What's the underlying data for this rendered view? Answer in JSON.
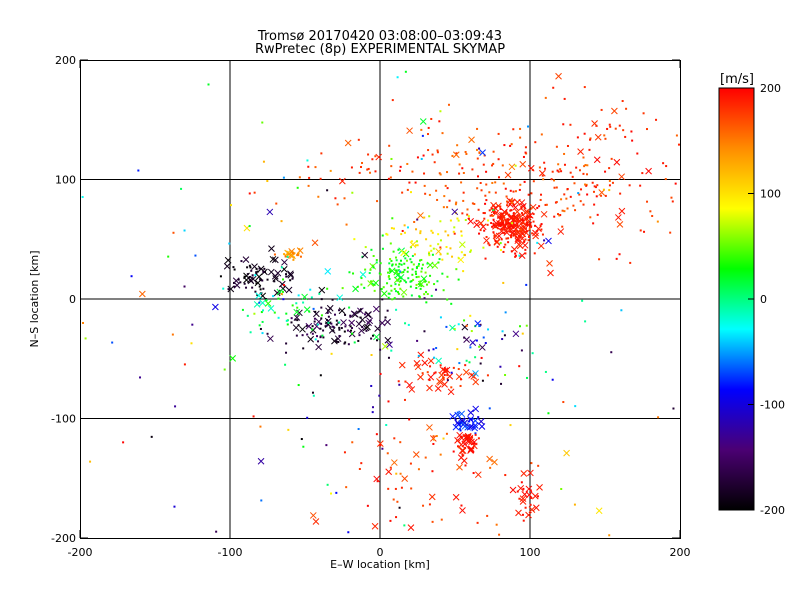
{
  "chart_data": {
    "type": "scatter",
    "title": "Tromsø 20170420 03:08:00–03:09:43",
    "subtitle": "RwPretec (8p) EXPERIMENTAL SKYMAP",
    "xlabel": "E–W location [km]",
    "ylabel": "N–S location [km]",
    "xlim": [
      -200,
      200
    ],
    "ylim": [
      -200,
      200
    ],
    "xticks": [
      -200,
      -100,
      0,
      100,
      200
    ],
    "yticks": [
      -200,
      -100,
      0,
      100,
      200
    ],
    "grid": true,
    "colorbar": {
      "label": "[m/s]",
      "range": [
        -200,
        200
      ],
      "ticks": [
        200,
        100,
        0,
        -100,
        -200
      ],
      "colors": [
        "#000000",
        "#4b0073",
        "#0000ff",
        "#00ffff",
        "#00ff00",
        "#ffff00",
        "#ff8c00",
        "#ff0000"
      ],
      "placement": "right"
    },
    "markers": {
      "plus": "small dot/plus",
      "cross": "x"
    },
    "clusters": [
      {
        "x": 88,
        "y": 62,
        "sx": 10,
        "sy": 10,
        "n": 260,
        "vmin": 180,
        "vmax": 200,
        "cross": 0.35
      },
      {
        "x": 75,
        "y": 100,
        "sx": 55,
        "sy": 25,
        "n": 220,
        "vmin": 150,
        "vmax": 200,
        "cross": 0.08
      },
      {
        "x": 150,
        "y": 105,
        "sx": 25,
        "sy": 35,
        "n": 90,
        "vmin": 170,
        "vmax": 200,
        "cross": 0.15
      },
      {
        "x": 15,
        "y": 20,
        "sx": 15,
        "sy": 12,
        "n": 160,
        "vmin": 10,
        "vmax": 60,
        "cross": 0.1
      },
      {
        "x": 40,
        "y": 50,
        "sx": 15,
        "sy": 12,
        "n": 60,
        "vmin": 60,
        "vmax": 120,
        "cross": 0.1
      },
      {
        "x": -80,
        "y": 18,
        "sx": 12,
        "sy": 8,
        "n": 80,
        "vmin": -200,
        "vmax": -170,
        "cross": 0.4
      },
      {
        "x": -58,
        "y": 38,
        "sx": 4,
        "sy": 2,
        "n": 25,
        "vmin": 120,
        "vmax": 160,
        "cross": 0.3
      },
      {
        "x": -30,
        "y": -22,
        "sx": 18,
        "sy": 10,
        "n": 120,
        "vmin": -200,
        "vmax": -150,
        "cross": 0.3
      },
      {
        "x": -60,
        "y": -10,
        "sx": 20,
        "sy": 20,
        "n": 50,
        "vmin": -40,
        "vmax": 40,
        "cross": 0.2
      },
      {
        "x": 40,
        "y": -65,
        "sx": 15,
        "sy": 8,
        "n": 50,
        "vmin": 170,
        "vmax": 200,
        "cross": 0.4
      },
      {
        "x": 58,
        "y": -103,
        "sx": 5,
        "sy": 6,
        "n": 35,
        "vmin": -110,
        "vmax": -60,
        "cross": 0.6
      },
      {
        "x": 58,
        "y": -122,
        "sx": 4,
        "sy": 6,
        "n": 40,
        "vmin": 185,
        "vmax": 200,
        "cross": 0.6
      },
      {
        "x": 98,
        "y": -165,
        "sx": 5,
        "sy": 10,
        "n": 25,
        "vmin": 185,
        "vmax": 200,
        "cross": 0.5
      },
      {
        "x": 25,
        "y": -140,
        "sx": 40,
        "sy": 30,
        "n": 70,
        "vmin": 150,
        "vmax": 200,
        "cross": 0.3
      },
      {
        "x": 60,
        "y": -40,
        "sx": 25,
        "sy": 15,
        "n": 50,
        "vmin": -200,
        "vmax": 60,
        "cross": 0.2
      },
      {
        "x": 0,
        "y": 0,
        "sx": 120,
        "sy": 110,
        "n": 200,
        "vmin": -200,
        "vmax": 200,
        "cross": 0.1
      }
    ]
  }
}
